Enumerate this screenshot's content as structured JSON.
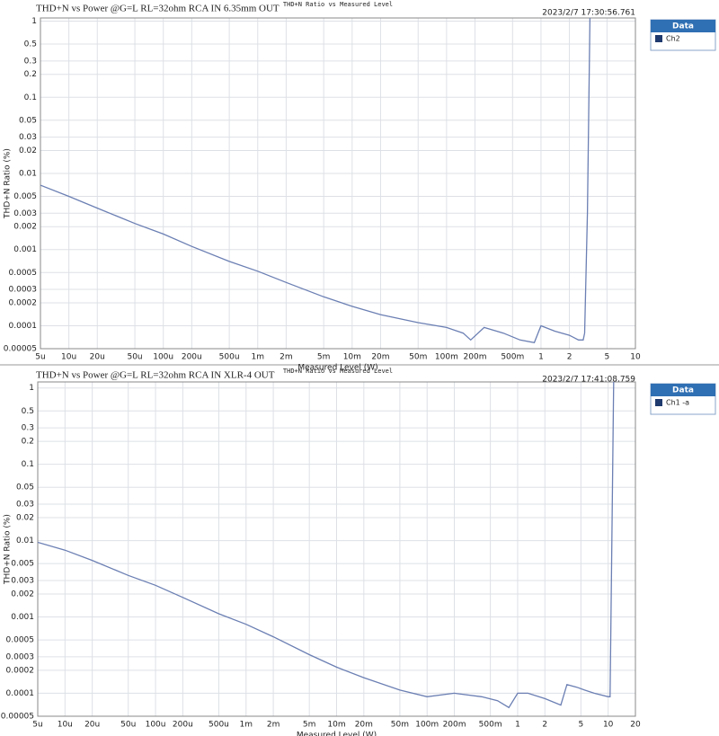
{
  "chart_data": [
    {
      "type": "line",
      "title": "THD+N vs Power @G=L RL=32ohm RCA IN 6.35mm OUT",
      "subtitle": "THD+N Ratio vs Measured Level",
      "timestamp": "2023/2/7 17:30:56.761",
      "xlabel": "Measured Level (W)",
      "ylabel": "THD+N Ratio (%)",
      "legend_title": "Data",
      "log_x": true,
      "log_y": true,
      "grid": true,
      "xlim": [
        5e-06,
        10
      ],
      "ylim": [
        5e-05,
        1.1
      ],
      "xticks": [
        {
          "value": 5e-06,
          "label": "5u"
        },
        {
          "value": 1e-05,
          "label": "10u"
        },
        {
          "value": 2e-05,
          "label": "20u"
        },
        {
          "value": 5e-05,
          "label": "50u"
        },
        {
          "value": 0.0001,
          "label": "100u"
        },
        {
          "value": 0.0002,
          "label": "200u"
        },
        {
          "value": 0.0005,
          "label": "500u"
        },
        {
          "value": 0.001,
          "label": "1m"
        },
        {
          "value": 0.002,
          "label": "2m"
        },
        {
          "value": 0.005,
          "label": "5m"
        },
        {
          "value": 0.01,
          "label": "10m"
        },
        {
          "value": 0.02,
          "label": "20m"
        },
        {
          "value": 0.05,
          "label": "50m"
        },
        {
          "value": 0.1,
          "label": "100m"
        },
        {
          "value": 0.2,
          "label": "200m"
        },
        {
          "value": 0.5,
          "label": "500m"
        },
        1,
        2,
        5,
        10
      ],
      "yticks": [
        1,
        0.5,
        0.3,
        0.2,
        0.1,
        0.05,
        0.03,
        0.02,
        0.01,
        0.005,
        0.003,
        0.002,
        0.001,
        0.0005,
        0.0003,
        0.0002,
        0.0001,
        5e-05
      ],
      "series": [
        {
          "name": "Ch2",
          "color": "#6b7fb3",
          "legend_color": "#1f3a6e",
          "x": [
            5e-06,
            1e-05,
            2e-05,
            5e-05,
            0.0001,
            0.0002,
            0.0005,
            0.001,
            0.002,
            0.005,
            0.01,
            0.02,
            0.05,
            0.1,
            0.15,
            0.18,
            0.25,
            0.4,
            0.6,
            0.85,
            1.0,
            1.4,
            2.0,
            2.5,
            2.8,
            2.9,
            3.1,
            3.3
          ],
          "values": [
            0.007,
            0.005,
            0.0035,
            0.0022,
            0.0016,
            0.0011,
            0.0007,
            0.00052,
            0.00037,
            0.00024,
            0.00018,
            0.00014,
            0.00011,
            9.5e-05,
            8e-05,
            6.5e-05,
            9.5e-05,
            8e-05,
            6.5e-05,
            6e-05,
            0.0001,
            8.5e-05,
            7.5e-05,
            6.5e-05,
            6.5e-05,
            8e-05,
            0.003,
            1.1
          ]
        }
      ]
    },
    {
      "type": "line",
      "title": "THD+N vs Power @G=L RL=32ohm RCA IN XLR-4 OUT",
      "subtitle": "THD+N Ratio vs Measured Level",
      "timestamp": "2023/2/7 17:41:08.759",
      "xlabel": "Measured Level (W)",
      "ylabel": "THD+N Ratio (%)",
      "legend_title": "Data",
      "log_x": true,
      "log_y": true,
      "grid": true,
      "xlim": [
        5e-06,
        20
      ],
      "ylim": [
        5e-05,
        1.2
      ],
      "xticks": [
        {
          "value": 5e-06,
          "label": "5u"
        },
        {
          "value": 1e-05,
          "label": "10u"
        },
        {
          "value": 2e-05,
          "label": "20u"
        },
        {
          "value": 5e-05,
          "label": "50u"
        },
        {
          "value": 0.0001,
          "label": "100u"
        },
        {
          "value": 0.0002,
          "label": "200u"
        },
        {
          "value": 0.0005,
          "label": "500u"
        },
        {
          "value": 0.001,
          "label": "1m"
        },
        {
          "value": 0.002,
          "label": "2m"
        },
        {
          "value": 0.005,
          "label": "5m"
        },
        {
          "value": 0.01,
          "label": "10m"
        },
        {
          "value": 0.02,
          "label": "20m"
        },
        {
          "value": 0.05,
          "label": "50m"
        },
        {
          "value": 0.1,
          "label": "100m"
        },
        {
          "value": 0.2,
          "label": "200m"
        },
        {
          "value": 0.5,
          "label": "500m"
        },
        1,
        2,
        5,
        10,
        20
      ],
      "yticks": [
        1,
        0.5,
        0.3,
        0.2,
        0.1,
        0.05,
        0.03,
        0.02,
        0.01,
        0.005,
        0.003,
        0.002,
        0.001,
        0.0005,
        0.0003,
        0.0002,
        0.0001,
        5e-05
      ],
      "series": [
        {
          "name": "Ch1 -a",
          "color": "#6b7fb3",
          "legend_color": "#1f3a6e",
          "x": [
            5e-06,
            1e-05,
            2e-05,
            5e-05,
            0.0001,
            0.0002,
            0.0005,
            0.001,
            0.002,
            0.005,
            0.01,
            0.02,
            0.05,
            0.1,
            0.2,
            0.4,
            0.6,
            0.8,
            1.0,
            1.3,
            2,
            3,
            3.5,
            4.5,
            5.5,
            7,
            10,
            10.5,
            11,
            11.5
          ],
          "values": [
            0.0095,
            0.0075,
            0.0055,
            0.0035,
            0.0026,
            0.0018,
            0.0011,
            0.0008,
            0.00055,
            0.00032,
            0.00022,
            0.00016,
            0.00011,
            9e-05,
            0.0001,
            9e-05,
            8e-05,
            6.5e-05,
            0.0001,
            0.0001,
            8.5e-05,
            7e-05,
            0.00013,
            0.00012,
            0.00011,
            0.0001,
            9e-05,
            9e-05,
            0.01,
            1.2
          ]
        }
      ]
    }
  ]
}
